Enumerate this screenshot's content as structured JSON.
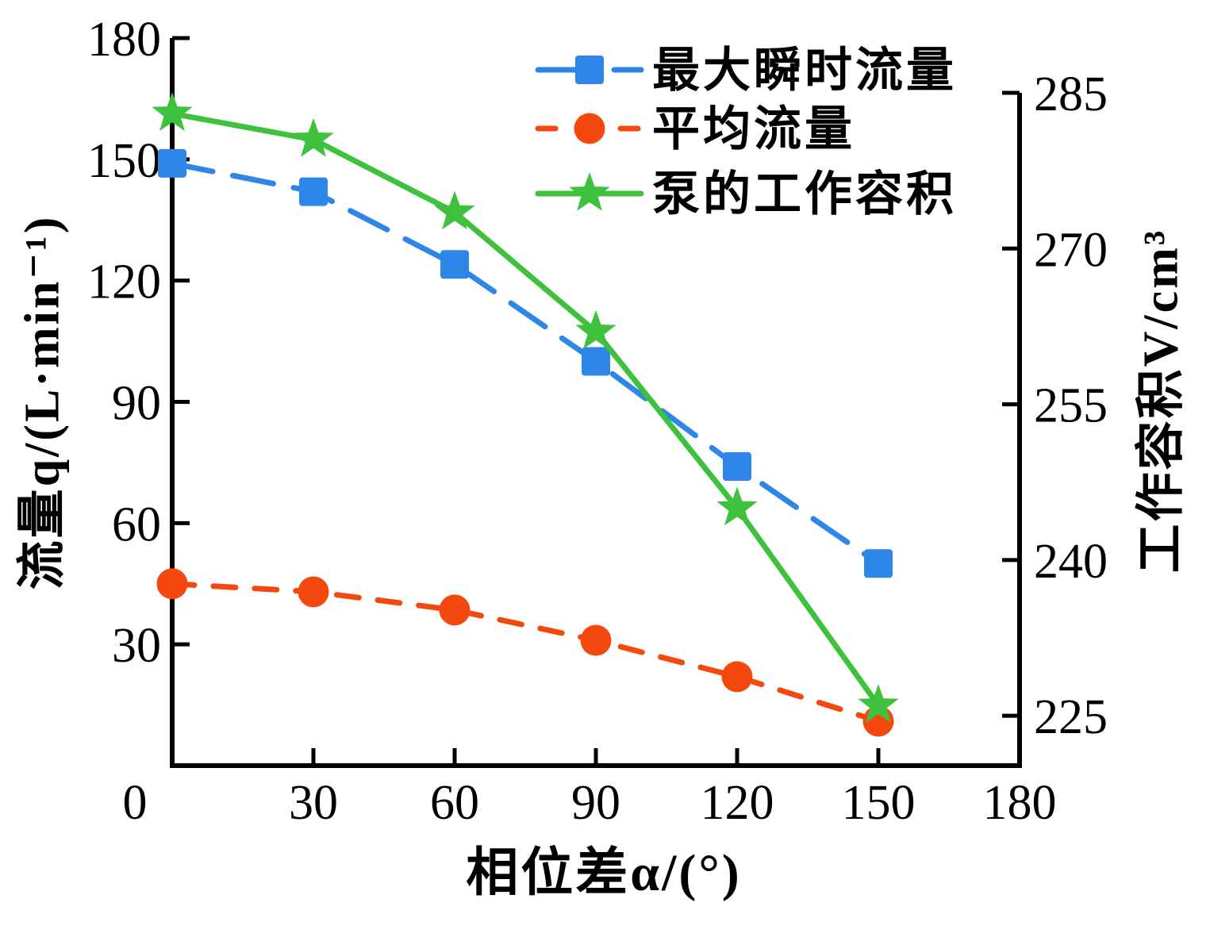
{
  "chart_data": {
    "type": "line",
    "title": "",
    "x_axis": {
      "label": "相位差α/(°)",
      "range": [
        0,
        180
      ],
      "ticks": [
        0,
        30,
        60,
        90,
        120,
        150,
        180
      ]
    },
    "y_left_axis": {
      "label": "流量q/(L·min⁻¹)",
      "range": [
        0,
        180
      ],
      "ticks": [
        30,
        60,
        90,
        120,
        150,
        180
      ]
    },
    "y_right_axis": {
      "label": "工作容积V/cm³",
      "range": [
        220.2,
        285
      ],
      "ticks": [
        225,
        240,
        255,
        270,
        285
      ]
    },
    "x": [
      0,
      30,
      60,
      90,
      120,
      150
    ],
    "series": [
      {
        "id": "max-instantaneous-flow",
        "name": "最大瞬时流量",
        "axis": "left",
        "color": "#2e87e8",
        "marker": "square",
        "line_style": "long-dash",
        "values": [
          149,
          142,
          124,
          100,
          74,
          50
        ]
      },
      {
        "id": "average-flow",
        "name": "平均流量",
        "axis": "left",
        "color": "#f4480e",
        "marker": "circle",
        "line_style": "dash",
        "values": [
          45,
          43,
          38.5,
          31,
          22,
          11
        ]
      },
      {
        "id": "pump-working-volume",
        "name": "泵的工作容积",
        "axis": "right",
        "color": "#3ec23e",
        "marker": "star",
        "line_style": "solid",
        "values": [
          283,
          280.5,
          273.5,
          262,
          245,
          226
        ]
      }
    ],
    "legend": {
      "position": "top-center",
      "entries": [
        "最大瞬时流量",
        "平均流量",
        "泵的工作容积"
      ]
    },
    "grid": false,
    "axis_color": "#000000",
    "background": "#ffffff"
  }
}
